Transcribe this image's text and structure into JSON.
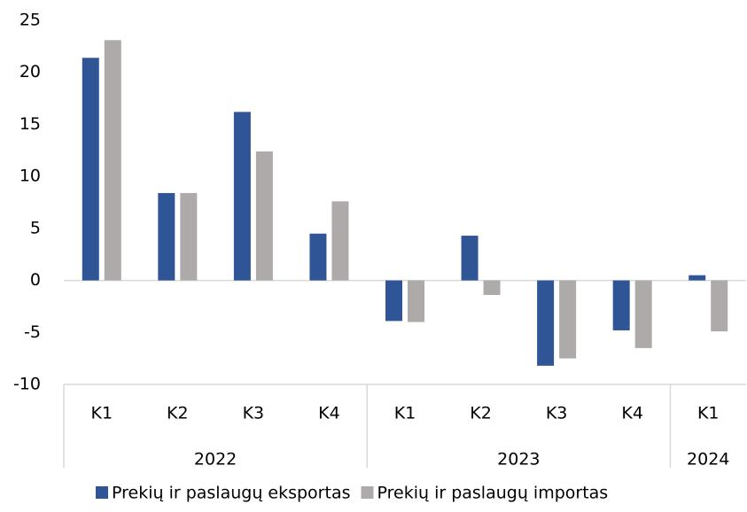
{
  "chart_data": {
    "type": "bar",
    "categories": [
      "K1",
      "K2",
      "K3",
      "K4",
      "K1",
      "K2",
      "K3",
      "K4",
      "K1"
    ],
    "groups": [
      {
        "label": "2022",
        "span": 4
      },
      {
        "label": "2023",
        "span": 4
      },
      {
        "label": "2024",
        "span": 1
      }
    ],
    "series": [
      {
        "name": "Prekių ir paslaugų eksportas",
        "color": "#2f5597",
        "values": [
          21.4,
          8.4,
          16.2,
          4.5,
          -3.9,
          4.3,
          -8.2,
          -4.8,
          0.5
        ]
      },
      {
        "name": "Prekių ir paslaugų importas",
        "color": "#aeaaaa",
        "values": [
          23.1,
          8.4,
          12.4,
          7.6,
          -4.0,
          -1.4,
          -7.5,
          -6.5,
          -4.9
        ]
      }
    ],
    "ylim": [
      -10,
      25
    ],
    "yticks": [
      -10,
      -5,
      0,
      5,
      10,
      15,
      20,
      25
    ],
    "legend": "bottom"
  }
}
